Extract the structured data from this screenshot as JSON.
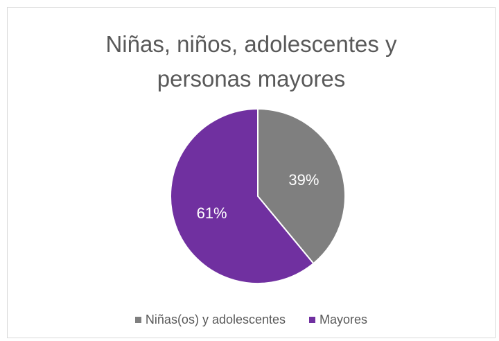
{
  "chart_data": {
    "type": "pie",
    "title_lines": [
      "Niñas, niños, adolescentes y",
      "personas mayores"
    ],
    "categories": [
      "Niñas(os) y adolescentes",
      "Mayores"
    ],
    "values": [
      39,
      61
    ],
    "labels": [
      "39%",
      "61%"
    ],
    "colors": [
      "#7f7f7f",
      "#7030a0"
    ],
    "legend_position": "bottom",
    "start_angle_deg": 0,
    "direction": "clockwise"
  }
}
